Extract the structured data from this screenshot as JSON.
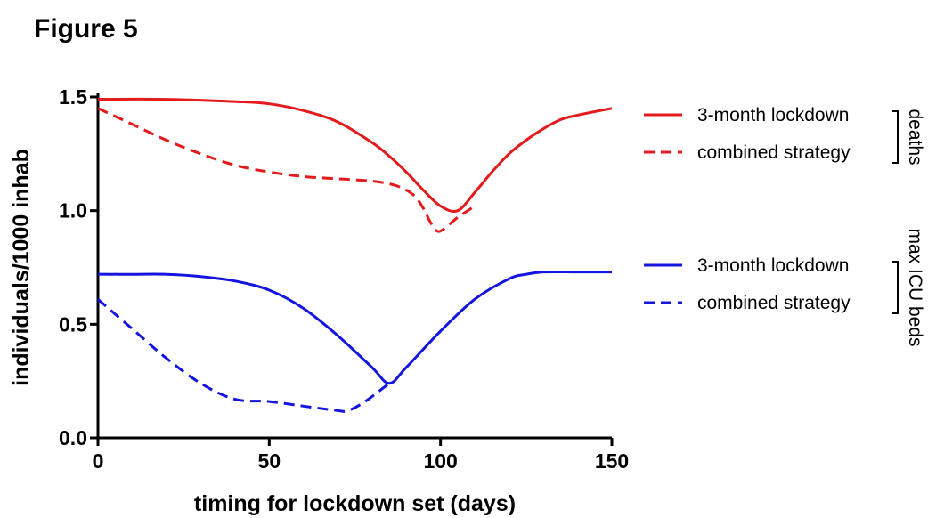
{
  "figure_label": "Figure 5",
  "chart_data": {
    "type": "line",
    "xlabel": "timing for lockdown set (days)",
    "ylabel": "individuals/1000 inhab",
    "xlim": [
      0,
      150
    ],
    "ylim": [
      0,
      1.5
    ],
    "xticks": [
      "0",
      "50",
      "100",
      "150"
    ],
    "yticks": [
      "0.0",
      "0.5",
      "1.0",
      "1.5"
    ],
    "grid": false,
    "legend_position": "right",
    "groups": [
      {
        "label": "deaths",
        "color": "#e41a1c",
        "series": [
          {
            "name": "3-month lockdown",
            "style": "solid",
            "color": "#e41a1c",
            "x": [
              0,
              20,
              40,
              50,
              60,
              70,
              80,
              85,
              90,
              95,
              100,
              105,
              110,
              115,
              120,
              125,
              130,
              135,
              140,
              150
            ],
            "y": [
              1.49,
              1.49,
              1.48,
              1.47,
              1.44,
              1.39,
              1.3,
              1.24,
              1.17,
              1.09,
              1.02,
              1.0,
              1.08,
              1.17,
              1.25,
              1.31,
              1.36,
              1.4,
              1.42,
              1.45
            ]
          },
          {
            "name": "combined strategy",
            "style": "dashed",
            "color": "#e41a1c",
            "x": [
              0,
              10,
              20,
              30,
              40,
              50,
              60,
              70,
              80,
              87,
              92,
              95,
              97,
              99,
              101,
              105,
              110
            ],
            "y": [
              1.45,
              1.38,
              1.31,
              1.25,
              1.2,
              1.17,
              1.15,
              1.14,
              1.13,
              1.11,
              1.07,
              1.01,
              0.95,
              0.91,
              0.92,
              0.97,
              1.02
            ]
          }
        ]
      },
      {
        "label": "max ICU beds",
        "color": "#1515e0",
        "series": [
          {
            "name": "3-month lockdown",
            "style": "solid",
            "color": "#1515e0",
            "x": [
              0,
              10,
              20,
              30,
              40,
              50,
              60,
              70,
              80,
              85,
              90,
              100,
              110,
              120,
              125,
              130,
              140,
              150
            ],
            "y": [
              0.72,
              0.72,
              0.72,
              0.71,
              0.69,
              0.65,
              0.57,
              0.45,
              0.31,
              0.24,
              0.31,
              0.47,
              0.61,
              0.7,
              0.72,
              0.73,
              0.73,
              0.73
            ]
          },
          {
            "name": "combined strategy",
            "style": "dashed",
            "color": "#1515e0",
            "x": [
              0,
              10,
              20,
              30,
              40,
              50,
              60,
              70,
              73,
              78,
              85
            ],
            "y": [
              0.61,
              0.48,
              0.35,
              0.24,
              0.17,
              0.16,
              0.14,
              0.12,
              0.12,
              0.16,
              0.24
            ]
          }
        ]
      }
    ]
  }
}
